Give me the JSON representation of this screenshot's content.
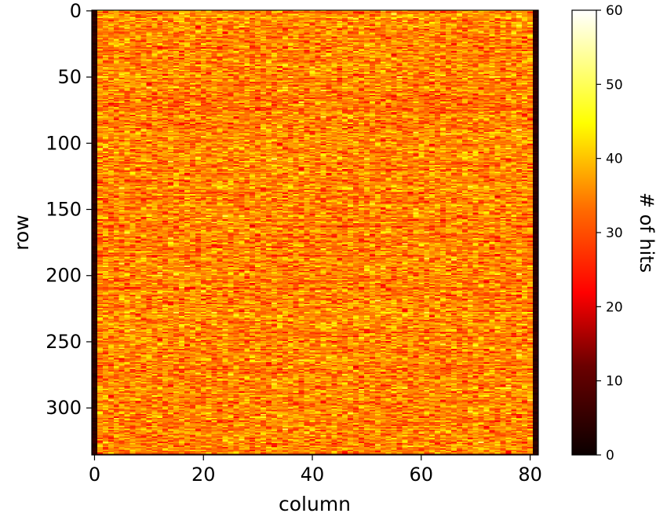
{
  "chart_data": {
    "type": "heatmap",
    "title": "",
    "xlabel": "column",
    "ylabel": "row",
    "colorbar_label": "# of hits",
    "colormap": "hot",
    "n_columns": 82,
    "n_rows": 336,
    "xlim": [
      -0.5,
      81.5
    ],
    "ylim": [
      335.5,
      -0.5
    ],
    "x_ticks": [
      0,
      20,
      40,
      60,
      80
    ],
    "y_ticks": [
      0,
      50,
      100,
      150,
      200,
      250,
      300
    ],
    "color_range": [
      0,
      60
    ],
    "colorbar_ticks": [
      0,
      10,
      20,
      30,
      40,
      50,
      60
    ],
    "interior_mean": 34,
    "interior_spread": 5,
    "edge_columns_value": 0,
    "bottom_row_value": 3,
    "grid": false
  }
}
